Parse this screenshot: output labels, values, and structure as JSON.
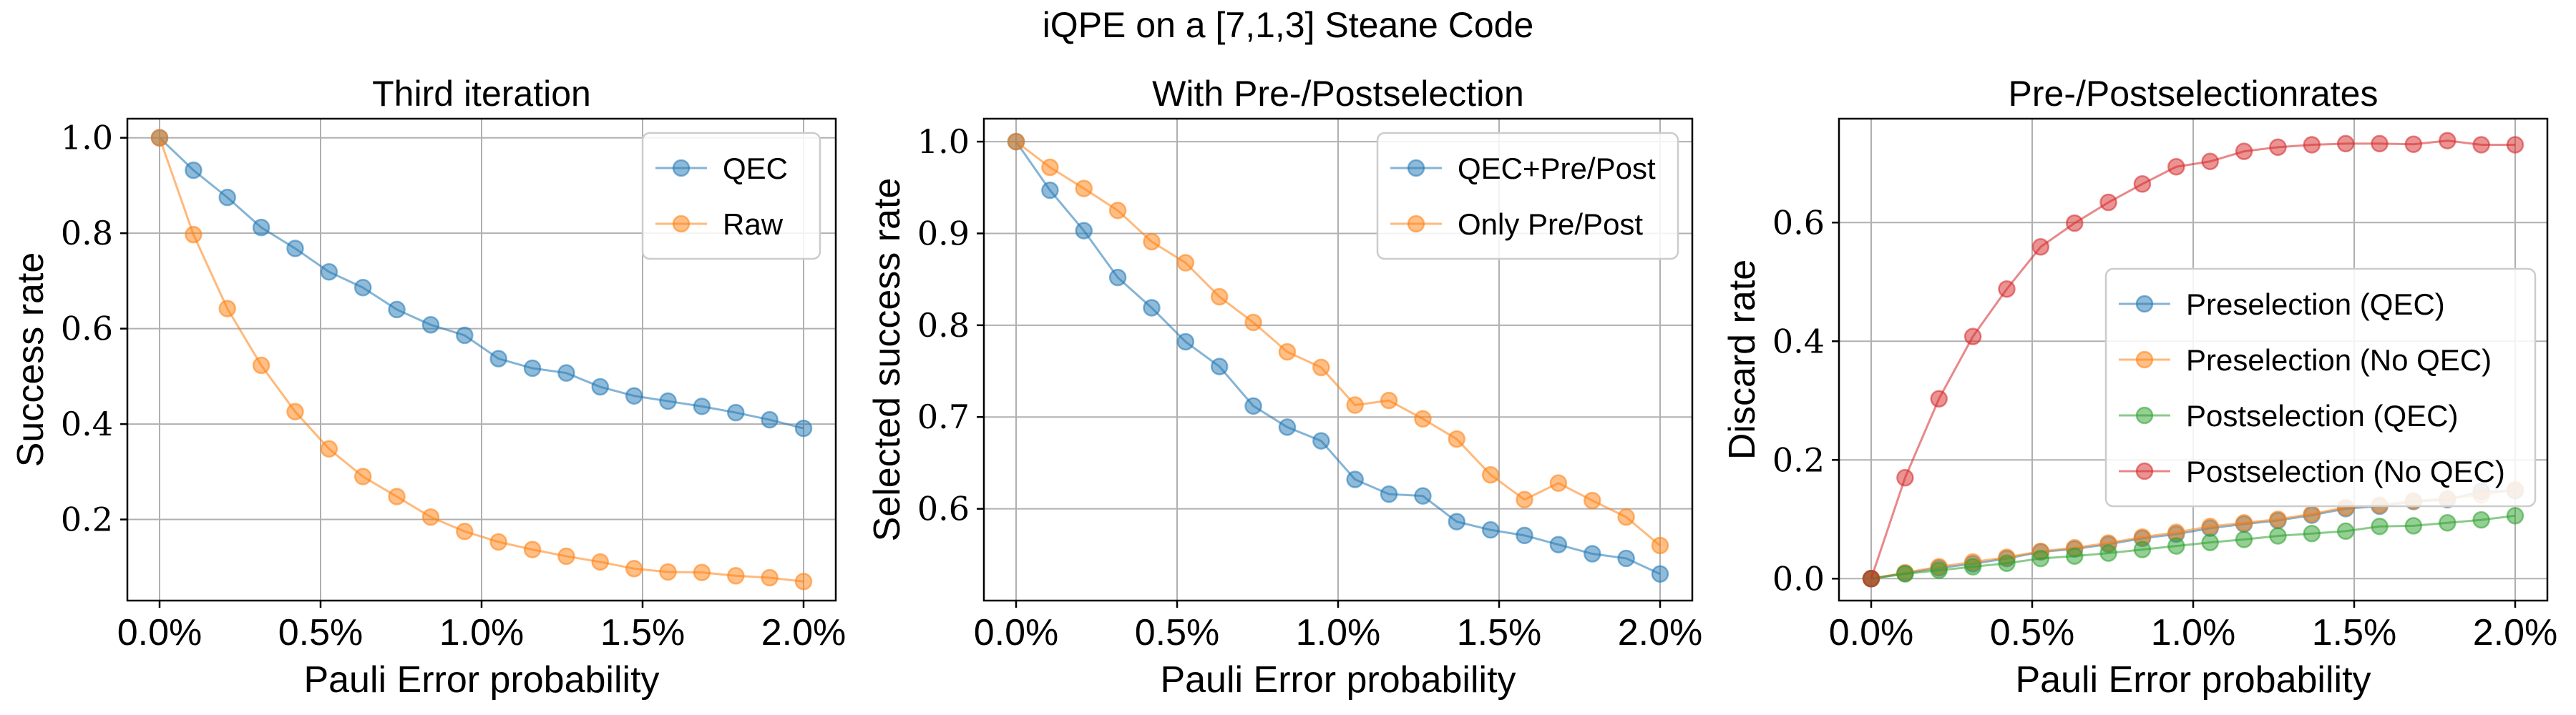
{
  "suptitle": "iQPE on a [7,1,3] Steane Code",
  "chart_data": [
    {
      "type": "line",
      "title": "Third iteration",
      "xlabel": "Pauli Error probability",
      "ylabel": "Success rate",
      "x": [
        0.0,
        0.1053,
        0.2105,
        0.3158,
        0.4211,
        0.5263,
        0.6316,
        0.7368,
        0.8421,
        0.9474,
        1.0526,
        1.1579,
        1.2632,
        1.3684,
        1.4737,
        1.5789,
        1.6842,
        1.7895,
        1.8947,
        2.0
      ],
      "xlim": [
        -0.1,
        2.1
      ],
      "ylim": [
        0.03,
        1.04
      ],
      "xticks": [
        0.0,
        0.5,
        1.0,
        1.5,
        2.0
      ],
      "xtick_labels": [
        "0.0%",
        "0.5%",
        "1.0%",
        "1.5%",
        "2.0%"
      ],
      "yticks": [
        0.2,
        0.4,
        0.6,
        0.8,
        1.0
      ],
      "ytick_labels": [
        "0.2",
        "0.4",
        "0.6",
        "0.8",
        "1.0"
      ],
      "grid": true,
      "legend_position": "top-right",
      "series": [
        {
          "name": "QEC",
          "color": "#1f77b4",
          "values": [
            1.0,
            0.932,
            0.875,
            0.812,
            0.768,
            0.719,
            0.686,
            0.64,
            0.608,
            0.586,
            0.537,
            0.517,
            0.507,
            0.478,
            0.459,
            0.448,
            0.437,
            0.424,
            0.409,
            0.391
          ]
        },
        {
          "name": "Raw",
          "color": "#ff7f0e",
          "values": [
            1.0,
            0.797,
            0.642,
            0.523,
            0.426,
            0.348,
            0.29,
            0.248,
            0.205,
            0.175,
            0.153,
            0.137,
            0.123,
            0.111,
            0.097,
            0.09,
            0.089,
            0.082,
            0.078,
            0.07
          ]
        }
      ]
    },
    {
      "type": "line",
      "title": "With Pre-/Postselection",
      "xlabel": "Pauli Error probability",
      "ylabel": "Selected success rate",
      "x": [
        0.0,
        0.1053,
        0.2105,
        0.3158,
        0.4211,
        0.5263,
        0.6316,
        0.7368,
        0.8421,
        0.9474,
        1.0526,
        1.1579,
        1.2632,
        1.3684,
        1.4737,
        1.5789,
        1.6842,
        1.7895,
        1.8947,
        2.0
      ],
      "xlim": [
        -0.1,
        2.1
      ],
      "ylim": [
        0.5,
        1.025
      ],
      "xticks": [
        0.0,
        0.5,
        1.0,
        1.5,
        2.0
      ],
      "xtick_labels": [
        "0.0%",
        "0.5%",
        "1.0%",
        "1.5%",
        "2.0%"
      ],
      "yticks": [
        0.6,
        0.7,
        0.8,
        0.9,
        1.0
      ],
      "ytick_labels": [
        "0.6",
        "0.7",
        "0.8",
        "0.9",
        "1.0"
      ],
      "grid": true,
      "legend_position": "top-right",
      "series": [
        {
          "name": "QEC+Pre/Post",
          "color": "#1f77b4",
          "values": [
            1.0,
            0.947,
            0.903,
            0.852,
            0.819,
            0.782,
            0.755,
            0.712,
            0.689,
            0.674,
            0.632,
            0.616,
            0.614,
            0.586,
            0.577,
            0.571,
            0.561,
            0.551,
            0.546,
            0.529
          ]
        },
        {
          "name": "Only Pre/Post",
          "color": "#ff7f0e",
          "values": [
            1.0,
            0.972,
            0.949,
            0.925,
            0.891,
            0.868,
            0.831,
            0.803,
            0.771,
            0.754,
            0.713,
            0.718,
            0.698,
            0.676,
            0.637,
            0.61,
            0.628,
            0.609,
            0.591,
            0.56
          ]
        }
      ]
    },
    {
      "type": "line",
      "title": "Pre-/Postselectionrates",
      "xlabel": "Pauli Error probability",
      "ylabel": "Discard rate",
      "x": [
        0.0,
        0.1053,
        0.2105,
        0.3158,
        0.4211,
        0.5263,
        0.6316,
        0.7368,
        0.8421,
        0.9474,
        1.0526,
        1.1579,
        1.2632,
        1.3684,
        1.4737,
        1.5789,
        1.6842,
        1.7895,
        1.8947,
        2.0
      ],
      "xlim": [
        -0.1,
        2.1
      ],
      "ylim": [
        -0.037,
        0.775
      ],
      "xticks": [
        0.0,
        0.5,
        1.0,
        1.5,
        2.0
      ],
      "xtick_labels": [
        "0.0%",
        "0.5%",
        "1.0%",
        "1.5%",
        "2.0%"
      ],
      "yticks": [
        0.0,
        0.2,
        0.4,
        0.6
      ],
      "ytick_labels": [
        "0.0",
        "0.2",
        "0.4",
        "0.6"
      ],
      "grid": true,
      "legend_position": "center-right",
      "series": [
        {
          "name": "Preselection (QEC)",
          "color": "#1f77b4",
          "values": [
            0.0,
            0.009,
            0.018,
            0.025,
            0.034,
            0.045,
            0.05,
            0.058,
            0.068,
            0.075,
            0.085,
            0.092,
            0.098,
            0.107,
            0.118,
            0.122,
            0.13,
            0.133,
            0.147,
            0.148
          ]
        },
        {
          "name": "Preselection (No QEC)",
          "color": "#ff7f0e",
          "values": [
            0.0,
            0.01,
            0.02,
            0.028,
            0.036,
            0.046,
            0.052,
            0.06,
            0.07,
            0.078,
            0.088,
            0.094,
            0.1,
            0.109,
            0.12,
            0.124,
            0.131,
            0.135,
            0.141,
            0.15
          ]
        },
        {
          "name": "Postselection (QEC)",
          "color": "#2ca02c",
          "values": [
            0.0,
            0.008,
            0.014,
            0.02,
            0.026,
            0.034,
            0.038,
            0.043,
            0.049,
            0.055,
            0.061,
            0.066,
            0.072,
            0.076,
            0.08,
            0.088,
            0.089,
            0.094,
            0.099,
            0.106
          ]
        },
        {
          "name": "Postselection (No QEC)",
          "color": "#d62728",
          "values": [
            0.0,
            0.17,
            0.303,
            0.408,
            0.488,
            0.559,
            0.599,
            0.634,
            0.665,
            0.694,
            0.703,
            0.72,
            0.727,
            0.731,
            0.733,
            0.733,
            0.732,
            0.738,
            0.731,
            0.731
          ]
        }
      ]
    }
  ]
}
